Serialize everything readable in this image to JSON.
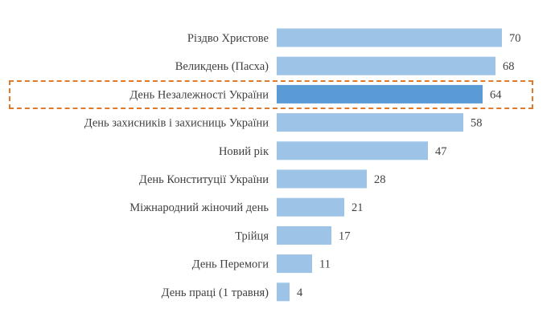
{
  "chart_data": {
    "type": "bar",
    "orientation": "horizontal",
    "title": "",
    "xlabel": "",
    "ylabel": "",
    "xlim": [
      0,
      70
    ],
    "grid": false,
    "categories": [
      "Різдво Христове",
      "Великдень (Пасха)",
      "День Незалежності України",
      "День захисників і захисниць України",
      "Новий рік",
      "День Конституції України",
      "Міжнародний жіночий день",
      "Трійця",
      "День Перемоги",
      "День праці (1 травня)"
    ],
    "values": [
      70,
      68,
      64,
      58,
      47,
      28,
      21,
      17,
      11,
      4
    ],
    "highlighted_category": "День Незалежності України",
    "colors": {
      "bar": "#9DC3E6",
      "highlight": "#5B9BD5",
      "highlight_box": "#E07B2B",
      "text": "#404040"
    }
  }
}
